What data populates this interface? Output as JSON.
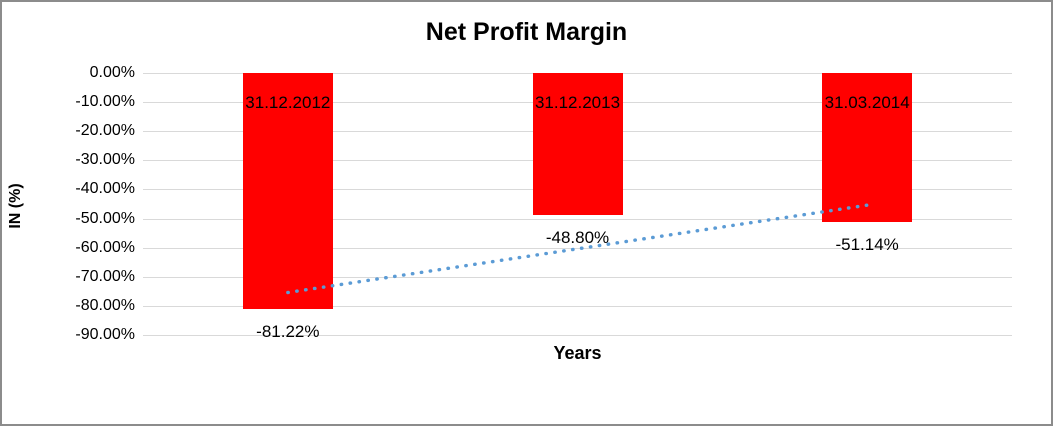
{
  "chart": {
    "title": "Net Profit Margin",
    "x_axis_title": "Years",
    "y_axis_title": "IN (%)"
  },
  "chart_data": {
    "type": "bar",
    "title": "Net Profit Margin",
    "xlabel": "Years",
    "ylabel": "IN (%)",
    "categories": [
      "31.12.2012",
      "31.12.2013",
      "31.03.2014"
    ],
    "values": [
      -81.22,
      -48.8,
      -51.14
    ],
    "data_labels": [
      "-81.22%",
      "-48.80%",
      "-51.14%"
    ],
    "y_ticks": [
      "0.00%",
      "-10.00%",
      "-20.00%",
      "-30.00%",
      "-40.00%",
      "-50.00%",
      "-60.00%",
      "-70.00%",
      "-80.00%",
      "-90.00%"
    ],
    "ylim": [
      0,
      -90
    ],
    "grid": true,
    "legend": false,
    "bar_color": "#FF0000",
    "gridline_color": "#D9D9D9",
    "trendline": {
      "style": "dotted",
      "color": "#5B9BD5",
      "start_value": -75.4,
      "end_value": -45.4
    }
  }
}
